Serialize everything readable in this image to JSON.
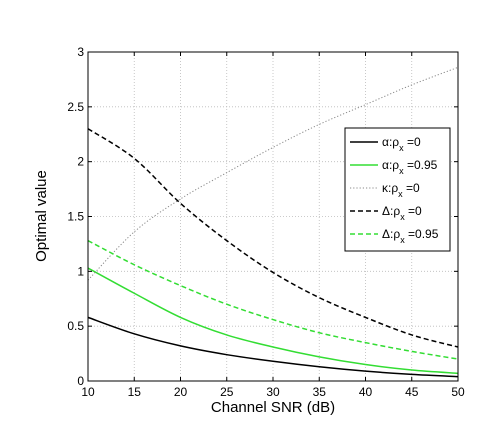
{
  "chart_data": {
    "type": "line",
    "title": "",
    "xlabel": "Channel SNR (dB)",
    "ylabel": "Optimal value",
    "xlim": [
      10,
      50
    ],
    "ylim": [
      0,
      3
    ],
    "xticks": [
      "10",
      "15",
      "20",
      "25",
      "30",
      "35",
      "40",
      "45",
      "50"
    ],
    "yticks": [
      "0",
      "0.5",
      "1",
      "1.5",
      "2",
      "2.5",
      "3"
    ],
    "grid": true,
    "legend_position": "right",
    "x": [
      10,
      15,
      20,
      25,
      30,
      35,
      40,
      45,
      50
    ],
    "series": [
      {
        "name": "α:ρ_x =0",
        "label_main": "α:ρ",
        "label_sub": "x",
        "label_tail": " =0",
        "color": "#000000",
        "dash": "solid",
        "values": [
          0.58,
          0.43,
          0.32,
          0.24,
          0.18,
          0.13,
          0.09,
          0.06,
          0.04
        ]
      },
      {
        "name": "α:ρ_x =0.95",
        "label_main": "α:ρ",
        "label_sub": "x",
        "label_tail": " =0.95",
        "color": "#33dd33",
        "dash": "solid",
        "values": [
          1.03,
          0.8,
          0.58,
          0.42,
          0.31,
          0.22,
          0.15,
          0.1,
          0.07
        ]
      },
      {
        "name": "κ:ρ_x =0",
        "label_main": "κ:ρ",
        "label_sub": "x",
        "label_tail": " =0",
        "color": "#888888",
        "dash": "dotted",
        "values": [
          0.92,
          1.36,
          1.66,
          1.9,
          2.13,
          2.34,
          2.52,
          2.7,
          2.86
        ]
      },
      {
        "name": "Δ:ρ_x =0",
        "label_main": "Δ:ρ",
        "label_sub": "x",
        "label_tail": " =0",
        "color": "#000000",
        "dash": "dashed",
        "values": [
          2.3,
          2.03,
          1.62,
          1.28,
          0.99,
          0.76,
          0.58,
          0.42,
          0.31
        ]
      },
      {
        "name": "Δ:ρ_x =0.95",
        "label_main": "Δ:ρ",
        "label_sub": "x",
        "label_tail": " =0.95",
        "color": "#33dd33",
        "dash": "dashed",
        "values": [
          1.28,
          1.06,
          0.87,
          0.7,
          0.56,
          0.44,
          0.35,
          0.27,
          0.2
        ]
      }
    ]
  }
}
